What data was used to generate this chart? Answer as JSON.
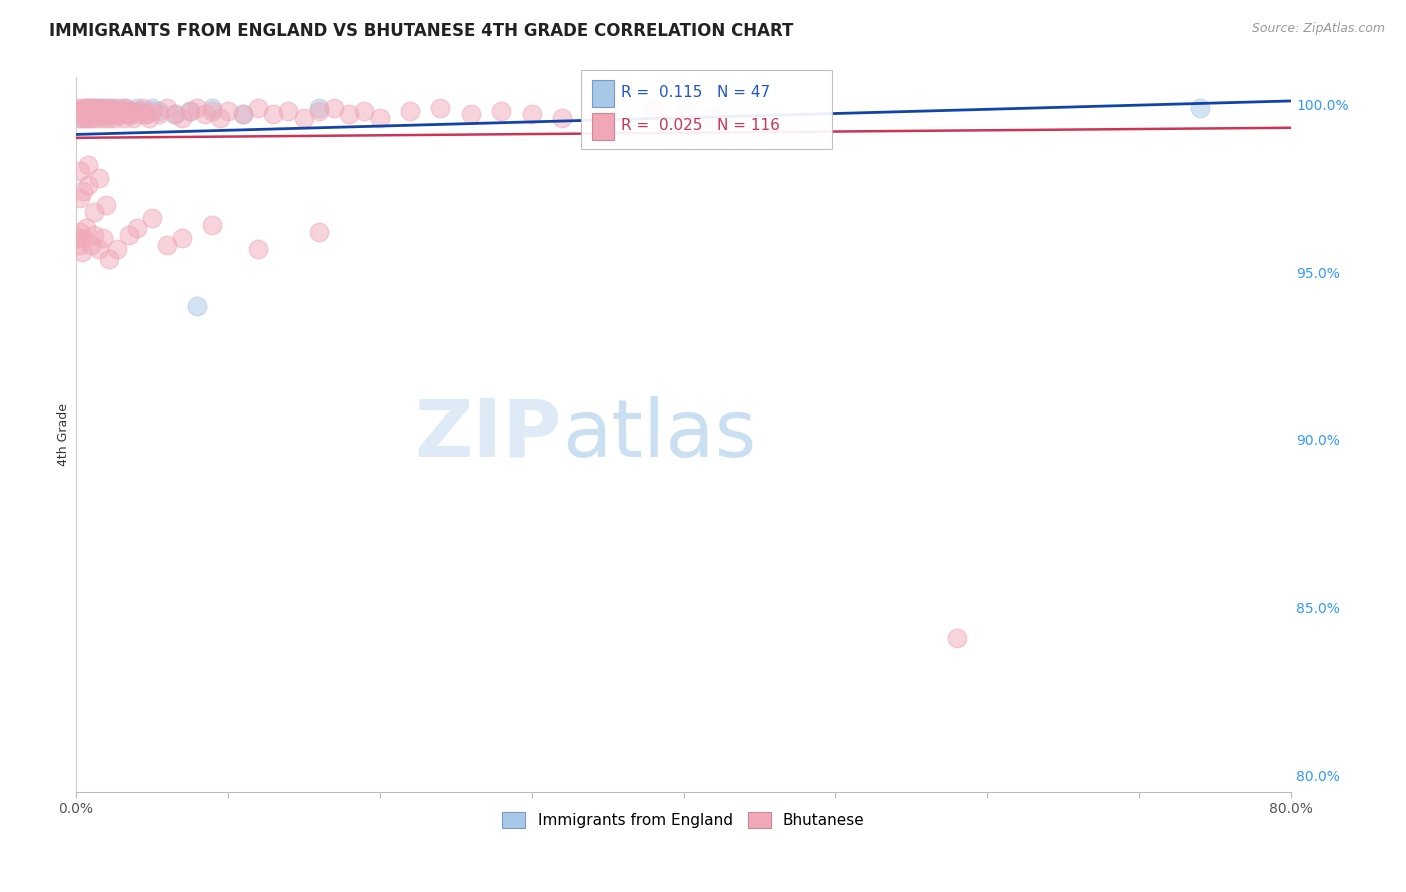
{
  "title": "IMMIGRANTS FROM ENGLAND VS BHUTANESE 4TH GRADE CORRELATION CHART",
  "source": "Source: ZipAtlas.com",
  "ylabel": "4th Grade",
  "xmin": 0.0,
  "xmax": 0.8,
  "ymin": 0.795,
  "ymax": 1.008,
  "yticks": [
    0.8,
    0.85,
    0.9,
    0.95,
    1.0
  ],
  "ytick_labels": [
    "80.0%",
    "85.0%",
    "90.0%",
    "95.0%",
    "100.0%"
  ],
  "xticks": [
    0.0,
    0.1,
    0.2,
    0.3,
    0.4,
    0.5,
    0.6,
    0.7,
    0.8
  ],
  "xtick_labels": [
    "0.0%",
    "",
    "",
    "",
    "",
    "",
    "",
    "",
    "80.0%"
  ],
  "blue_color": "#a8c8e8",
  "pink_color": "#f0a8b8",
  "blue_line_color": "#1144aa",
  "pink_line_color": "#cc3355",
  "R_blue": 0.115,
  "N_blue": 47,
  "R_pink": 0.025,
  "N_pink": 116,
  "blue_x": [
    0.002,
    0.003,
    0.005,
    0.006,
    0.007,
    0.007,
    0.008,
    0.008,
    0.009,
    0.01,
    0.01,
    0.011,
    0.012,
    0.013,
    0.013,
    0.014,
    0.015,
    0.016,
    0.016,
    0.017,
    0.018,
    0.019,
    0.02,
    0.021,
    0.022,
    0.023,
    0.024,
    0.025,
    0.026,
    0.028,
    0.03,
    0.032,
    0.033,
    0.035,
    0.037,
    0.04,
    0.043,
    0.046,
    0.05,
    0.055,
    0.065,
    0.075,
    0.09,
    0.11,
    0.16,
    0.08,
    0.74
  ],
  "blue_y": [
    0.998,
    0.996,
    0.997,
    0.998,
    0.996,
    0.999,
    0.997,
    0.999,
    0.998,
    0.997,
    0.999,
    0.998,
    0.997,
    0.998,
    0.999,
    0.997,
    0.998,
    0.999,
    0.997,
    0.998,
    0.997,
    0.999,
    0.998,
    0.997,
    0.999,
    0.998,
    0.997,
    0.998,
    0.999,
    0.997,
    0.998,
    0.999,
    0.997,
    0.998,
    0.997,
    0.999,
    0.998,
    0.997,
    0.999,
    0.998,
    0.997,
    0.998,
    0.999,
    0.997,
    0.999,
    0.94,
    0.999
  ],
  "pink_x": [
    0.001,
    0.002,
    0.002,
    0.003,
    0.003,
    0.004,
    0.004,
    0.005,
    0.005,
    0.006,
    0.006,
    0.007,
    0.007,
    0.008,
    0.008,
    0.009,
    0.009,
    0.01,
    0.01,
    0.011,
    0.011,
    0.012,
    0.012,
    0.013,
    0.013,
    0.014,
    0.015,
    0.015,
    0.016,
    0.017,
    0.017,
    0.018,
    0.019,
    0.02,
    0.02,
    0.021,
    0.022,
    0.023,
    0.024,
    0.025,
    0.026,
    0.027,
    0.028,
    0.029,
    0.03,
    0.031,
    0.032,
    0.033,
    0.035,
    0.036,
    0.038,
    0.04,
    0.042,
    0.044,
    0.046,
    0.048,
    0.05,
    0.055,
    0.06,
    0.065,
    0.07,
    0.075,
    0.08,
    0.085,
    0.09,
    0.095,
    0.1,
    0.11,
    0.12,
    0.13,
    0.14,
    0.15,
    0.16,
    0.17,
    0.18,
    0.19,
    0.2,
    0.22,
    0.24,
    0.26,
    0.28,
    0.3,
    0.32,
    0.35,
    0.38,
    0.4,
    0.42,
    0.001,
    0.002,
    0.003,
    0.004,
    0.005,
    0.007,
    0.01,
    0.012,
    0.015,
    0.018,
    0.022,
    0.027,
    0.035,
    0.04,
    0.05,
    0.06,
    0.07,
    0.09,
    0.12,
    0.16,
    0.003,
    0.005,
    0.008,
    0.012,
    0.02,
    0.003,
    0.008,
    0.015,
    0.58
  ],
  "pink_y": [
    0.998,
    0.997,
    0.999,
    0.998,
    0.996,
    0.998,
    0.997,
    0.999,
    0.997,
    0.998,
    0.996,
    0.999,
    0.997,
    0.998,
    0.996,
    0.999,
    0.997,
    0.998,
    0.996,
    0.998,
    0.997,
    0.999,
    0.996,
    0.998,
    0.997,
    0.999,
    0.997,
    0.996,
    0.998,
    0.999,
    0.997,
    0.998,
    0.996,
    0.999,
    0.997,
    0.998,
    0.996,
    0.999,
    0.997,
    0.998,
    0.996,
    0.998,
    0.997,
    0.999,
    0.997,
    0.998,
    0.996,
    0.999,
    0.997,
    0.998,
    0.996,
    0.998,
    0.997,
    0.999,
    0.997,
    0.996,
    0.998,
    0.997,
    0.999,
    0.997,
    0.996,
    0.998,
    0.999,
    0.997,
    0.998,
    0.996,
    0.998,
    0.997,
    0.999,
    0.997,
    0.998,
    0.996,
    0.998,
    0.999,
    0.997,
    0.998,
    0.996,
    0.998,
    0.999,
    0.997,
    0.998,
    0.997,
    0.996,
    0.998,
    0.999,
    0.997,
    0.996,
    0.96,
    0.958,
    0.962,
    0.956,
    0.96,
    0.963,
    0.958,
    0.961,
    0.957,
    0.96,
    0.954,
    0.957,
    0.961,
    0.963,
    0.966,
    0.958,
    0.96,
    0.964,
    0.957,
    0.962,
    0.972,
    0.974,
    0.976,
    0.968,
    0.97,
    0.98,
    0.982,
    0.978,
    0.841
  ],
  "watermark_zip": "ZIP",
  "watermark_atlas": "atlas",
  "bg_color": "#ffffff",
  "grid_color": "#cccccc",
  "title_fontsize": 12,
  "source_fontsize": 9,
  "axis_label_fontsize": 9,
  "tick_fontsize": 10,
  "legend_fontsize": 11
}
